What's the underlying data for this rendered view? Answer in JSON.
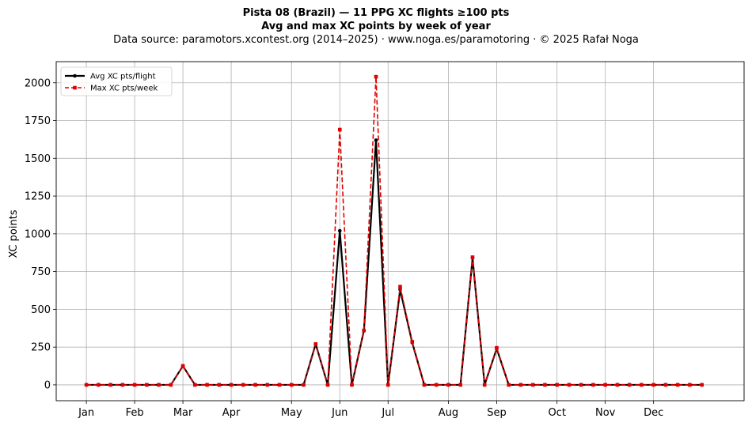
{
  "chart_data": {
    "type": "line",
    "title_line1": "Pista 08 (Brazil)  —  11 PPG XC flights ≥100 pts",
    "title_line2": "Avg and max XC points by week of year",
    "subtitle": "Data source: paramotors.xcontest.org (2014–2025)  ·  www.noga.es/paramotoring  ·  © 2025 Rafał Noga",
    "xlabel": "",
    "ylabel": "XC points",
    "x_ticks": [
      {
        "label": "Jan",
        "week": 1
      },
      {
        "label": "Feb",
        "week": 5
      },
      {
        "label": "Mar",
        "week": 9
      },
      {
        "label": "Apr",
        "week": 13
      },
      {
        "label": "May",
        "week": 18
      },
      {
        "label": "Jun",
        "week": 22
      },
      {
        "label": "Jul",
        "week": 26
      },
      {
        "label": "Aug",
        "week": 31
      },
      {
        "label": "Sep",
        "week": 35
      },
      {
        "label": "Oct",
        "week": 40
      },
      {
        "label": "Nov",
        "week": 44
      },
      {
        "label": "Dec",
        "week": 48
      }
    ],
    "y_ticks": [
      0,
      250,
      500,
      750,
      1000,
      1250,
      1500,
      1750,
      2000
    ],
    "xlim": [
      -1.5,
      55.5
    ],
    "ylim": [
      -105,
      2140
    ],
    "grid": true,
    "legend_position": "top-left",
    "weeks": [
      1,
      2,
      3,
      4,
      5,
      6,
      7,
      8,
      9,
      10,
      11,
      12,
      13,
      14,
      15,
      16,
      17,
      18,
      19,
      20,
      21,
      22,
      23,
      24,
      25,
      26,
      27,
      28,
      29,
      30,
      31,
      32,
      33,
      34,
      35,
      36,
      37,
      38,
      39,
      40,
      41,
      42,
      43,
      44,
      45,
      46,
      47,
      48,
      49,
      50,
      51,
      52
    ],
    "series": [
      {
        "name": "Avg XC pts/flight",
        "color": "#000000",
        "style": "solid",
        "marker": "circle",
        "values": [
          0,
          0,
          0,
          0,
          0,
          0,
          0,
          0,
          125,
          0,
          0,
          0,
          0,
          0,
          0,
          0,
          0,
          0,
          0,
          270,
          0,
          1020,
          0,
          360,
          1620,
          0,
          630,
          280,
          0,
          0,
          0,
          0,
          840,
          0,
          240,
          0,
          0,
          0,
          0,
          0,
          0,
          0,
          0,
          0,
          0,
          0,
          0,
          0,
          0,
          0,
          0,
          0
        ]
      },
      {
        "name": "Max XC pts/week",
        "color": "#e00000",
        "style": "dashed",
        "marker": "square",
        "values": [
          0,
          0,
          0,
          0,
          0,
          0,
          0,
          0,
          125,
          0,
          0,
          0,
          0,
          0,
          0,
          0,
          0,
          0,
          0,
          270,
          0,
          1690,
          0,
          360,
          2040,
          0,
          650,
          285,
          0,
          0,
          0,
          0,
          845,
          0,
          245,
          0,
          0,
          0,
          0,
          0,
          0,
          0,
          0,
          0,
          0,
          0,
          0,
          0,
          0,
          0,
          0,
          0
        ]
      }
    ]
  }
}
